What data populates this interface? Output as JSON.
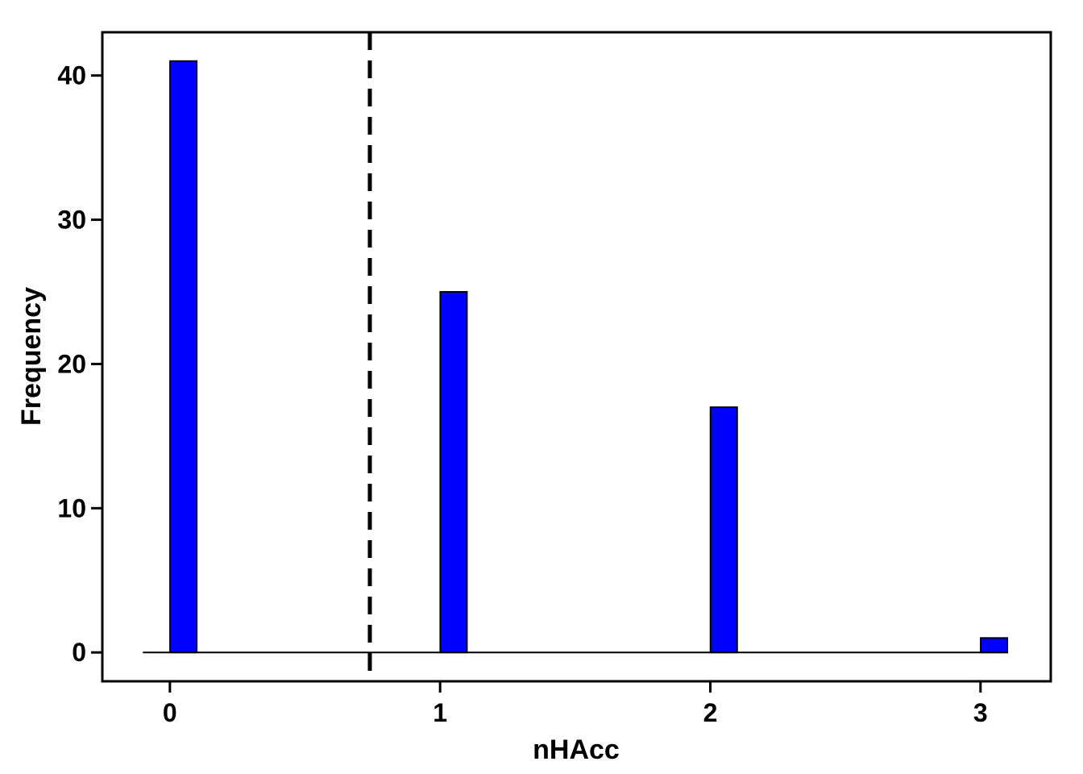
{
  "chart_data": {
    "type": "bar",
    "title": "",
    "xlabel": "nHAcc",
    "ylabel": "Frequency",
    "x": [
      0,
      1,
      2,
      3
    ],
    "values": [
      41,
      25,
      17,
      1
    ],
    "xticks": [
      "0",
      "1",
      "2",
      "3"
    ],
    "yticks": [
      "0",
      "10",
      "20",
      "30",
      "40"
    ],
    "xlim": [
      -0.25,
      3.26
    ],
    "ylim": [
      -2,
      43
    ],
    "vline": {
      "x": 0.74,
      "style": "dashed"
    },
    "colors": {
      "bar": "#0000ff",
      "stroke": "#000000"
    },
    "grid": false,
    "legend": "none"
  }
}
